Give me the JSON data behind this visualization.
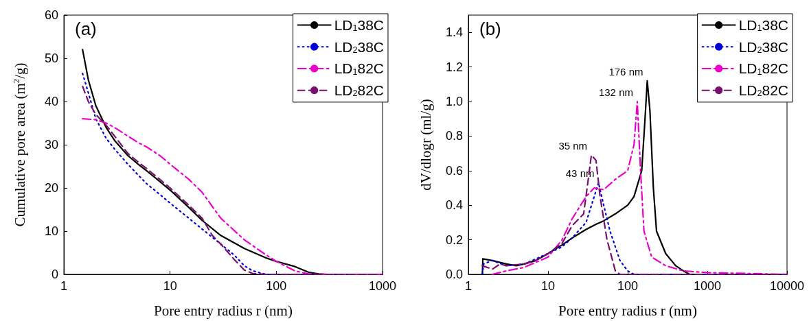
{
  "chart_data": [
    {
      "type": "line",
      "title": "(a)",
      "xlabel": "Pore entry radius r (nm)",
      "ylabel": "Cumulative pore area (m$^{2}$/g)",
      "log": "x",
      "xlim": [
        1,
        1000
      ],
      "xticks": [
        1,
        10,
        100,
        1000
      ],
      "ylim": [
        0,
        60
      ],
      "yticks": [
        0,
        10,
        20,
        30,
        40,
        50,
        60
      ],
      "grid": false,
      "legend": "top right",
      "marker": "none",
      "series": [
        {
          "name": "LD$_{1}$38C",
          "color": "#000000",
          "line_style": "solid",
          "x": [
            1.5,
            1.7,
            2,
            2.5,
            3,
            4,
            5,
            6,
            8,
            10,
            15,
            20,
            30,
            50,
            80,
            100,
            150,
            200,
            250,
            300,
            1000
          ],
          "values": [
            52,
            45,
            39,
            34,
            31,
            27.5,
            25.5,
            24,
            21.5,
            19.5,
            15.5,
            12.5,
            9,
            6,
            3.8,
            3,
            1.8,
            0.5,
            0.1,
            0,
            0
          ]
        },
        {
          "name": "LD$_{2}$38C",
          "color": "#0000dd",
          "line_style": "dotted",
          "x": [
            1.5,
            1.7,
            2,
            2.5,
            3,
            4,
            5,
            6,
            8,
            10,
            15,
            20,
            30,
            40,
            50,
            60,
            80,
            1000
          ],
          "values": [
            46.5,
            42,
            36,
            31.5,
            29,
            25.5,
            23,
            21,
            18.5,
            16.5,
            13,
            10.5,
            7,
            4.5,
            2,
            0.8,
            0,
            0
          ]
        },
        {
          "name": "LD$_{1}$82C",
          "color": "#ee00cc",
          "line_style": "dashdot",
          "x": [
            1.5,
            2,
            2.5,
            3,
            4,
            5,
            6,
            8,
            10,
            15,
            20,
            30,
            50,
            80,
            100,
            150,
            200,
            300,
            1000
          ],
          "values": [
            36,
            35.8,
            35,
            34,
            32,
            30.5,
            29.5,
            27.5,
            25.5,
            22,
            19,
            13,
            8,
            4.5,
            3,
            0.8,
            0.1,
            0,
            0
          ]
        },
        {
          "name": "LD$_{2}$82C",
          "color": "#7b0f6e",
          "line_style": "dashed",
          "x": [
            1.5,
            1.7,
            2,
            2.5,
            3,
            4,
            5,
            6,
            8,
            10,
            15,
            20,
            25,
            30,
            40,
            50,
            60,
            80,
            1000
          ],
          "values": [
            43.5,
            40,
            37,
            34.5,
            32,
            28,
            26,
            24.5,
            22,
            20,
            16,
            13,
            9,
            7,
            3.5,
            1,
            0.2,
            0,
            0
          ]
        }
      ]
    },
    {
      "type": "line",
      "title": "(b)",
      "xlabel": "Pore entry radius r (nm)",
      "ylabel": "dV/dlogr (ml/g)",
      "log": "x",
      "xlim": [
        1,
        10000
      ],
      "xticks": [
        1,
        10,
        100,
        1000,
        10000
      ],
      "ylim": [
        0,
        1.5
      ],
      "yticks": [
        {
          "value": 0,
          "label": "0.0"
        },
        {
          "value": 0.2,
          "label": "0.2"
        },
        {
          "value": 0.4,
          "label": "0.4"
        },
        {
          "value": 0.6,
          "label": "0.6"
        },
        {
          "value": 0.8,
          "label": "0.8"
        },
        {
          "value": 1,
          "label": "1.0"
        },
        {
          "value": 1.2,
          "label": "1.2"
        },
        {
          "value": 1.4,
          "label": "1.4"
        }
      ],
      "grid": false,
      "legend": "top right",
      "marker": "none",
      "annotations": [
        {
          "text": "176 nm",
          "x": 176,
          "y": 1.12
        },
        {
          "text": "132 nm",
          "x": 132,
          "y": 1.0
        },
        {
          "text": "35 nm",
          "x": 35,
          "y": 0.69
        },
        {
          "text": "43 nm",
          "x": 43,
          "y": 0.53
        }
      ],
      "series": [
        {
          "name": "LD$_{1}$38C",
          "color": "#000000",
          "line_style": "solid",
          "x": [
            1.5,
            1.52,
            2,
            3,
            4,
            5,
            7,
            10,
            15,
            20,
            30,
            40,
            50,
            70,
            100,
            120,
            150,
            165,
            176,
            190,
            210,
            230,
            300,
            400,
            500,
            600,
            10000
          ],
          "values": [
            0,
            0.09,
            0.08,
            0.06,
            0.05,
            0.06,
            0.08,
            0.12,
            0.17,
            0.21,
            0.26,
            0.29,
            0.31,
            0.35,
            0.4,
            0.45,
            0.6,
            0.9,
            1.12,
            0.95,
            0.5,
            0.25,
            0.12,
            0.05,
            0.02,
            0,
            0
          ]
        },
        {
          "name": "LD$_{2}$38C",
          "color": "#0000dd",
          "line_style": "dotted",
          "x": [
            1.5,
            1.55,
            2,
            3,
            5,
            10,
            15,
            20,
            30,
            38,
            43,
            50,
            60,
            80,
            100,
            120,
            10000
          ],
          "values": [
            0,
            0.06,
            0.08,
            0.05,
            0.06,
            0.12,
            0.16,
            0.21,
            0.3,
            0.45,
            0.53,
            0.4,
            0.25,
            0.08,
            0.02,
            0,
            0
          ]
        },
        {
          "name": "LD$_{1}$82C",
          "color": "#ee00cc",
          "line_style": "dashdot",
          "x": [
            2,
            3,
            5,
            10,
            15,
            20,
            30,
            38,
            50,
            70,
            100,
            120,
            132,
            145,
            160,
            200,
            300,
            500,
            1000,
            10000
          ],
          "values": [
            0,
            0.02,
            0.04,
            0.1,
            0.2,
            0.32,
            0.45,
            0.5,
            0.49,
            0.55,
            0.6,
            0.75,
            1.0,
            0.6,
            0.25,
            0.1,
            0.05,
            0.02,
            0.01,
            0
          ]
        },
        {
          "name": "LD$_{2}$82C",
          "color": "#7b0f6e",
          "line_style": "dashed",
          "x": [
            1.5,
            2,
            2.5,
            3,
            5,
            7,
            10,
            15,
            20,
            28,
            32,
            35,
            40,
            45,
            55,
            70,
            80,
            10000
          ],
          "values": [
            0.05,
            0.03,
            0.06,
            0.05,
            0.06,
            0.08,
            0.12,
            0.18,
            0.28,
            0.35,
            0.55,
            0.69,
            0.66,
            0.45,
            0.2,
            0.02,
            0,
            0
          ]
        }
      ]
    }
  ]
}
